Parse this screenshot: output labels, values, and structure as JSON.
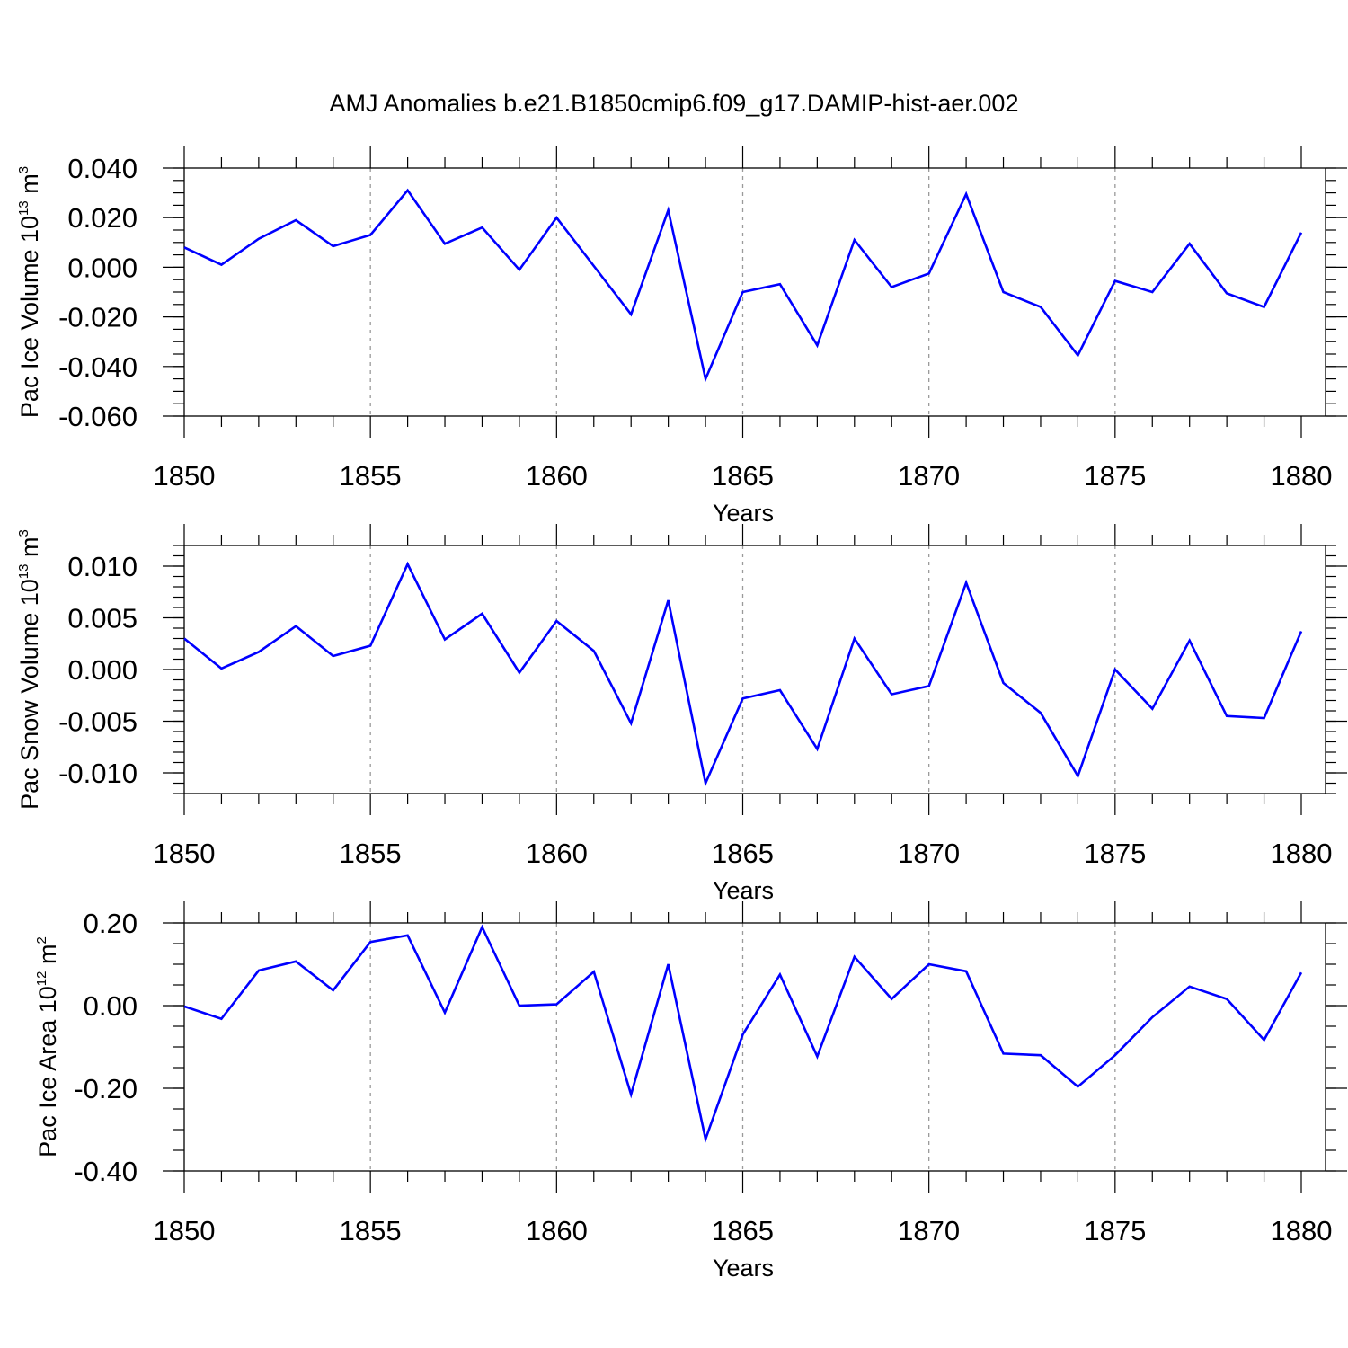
{
  "figure": {
    "title": "AMJ Anomalies b.e21.B1850cmip6.f09_g17.DAMIP-hist-aer.002"
  },
  "chart_data": [
    {
      "type": "line",
      "xlabel": "Years",
      "ylabel": {
        "text": "Pac Ice Volume 10",
        "sup": "13",
        "unit_tail": " m",
        "unit_sup": "3"
      },
      "xlim": [
        1850,
        1880
      ],
      "ylim": [
        -0.06,
        0.04
      ],
      "xticks": [
        1850,
        1855,
        1860,
        1865,
        1870,
        1875,
        1880
      ],
      "xtick_labels": [
        "1850",
        "1855",
        "1860",
        "1865",
        "1870",
        "1875",
        "1880"
      ],
      "yticks": [
        -0.06,
        -0.04,
        -0.02,
        0.0,
        0.02,
        0.04
      ],
      "ytick_labels": [
        "-0.060",
        "-0.040",
        "-0.020",
        "0.000",
        "0.020",
        "0.040"
      ],
      "y_minor_step": 0.005,
      "grid": "vertical dashed at major x ticks",
      "color": "#0000ff",
      "x": [
        1850,
        1851,
        1852,
        1853,
        1854,
        1855,
        1856,
        1857,
        1858,
        1859,
        1860,
        1861,
        1862,
        1863,
        1864,
        1865,
        1866,
        1867,
        1868,
        1869,
        1870,
        1871,
        1872,
        1873,
        1874,
        1875,
        1876,
        1877,
        1878,
        1879,
        1880
      ],
      "values": [
        0.008,
        0.001,
        0.0115,
        0.019,
        0.0085,
        0.013,
        0.031,
        0.0095,
        0.016,
        -0.001,
        0.02,
        0.0005,
        -0.019,
        0.023,
        -0.045,
        -0.01,
        -0.0068,
        -0.0315,
        0.011,
        -0.008,
        -0.0025,
        0.0295,
        -0.01,
        -0.016,
        -0.0355,
        -0.0055,
        -0.01,
        0.0095,
        -0.0105,
        -0.016,
        0.014
      ]
    },
    {
      "type": "line",
      "xlabel": "Years",
      "ylabel": {
        "text": "Pac Snow Volume 10",
        "sup": "13",
        "unit_tail": " m",
        "unit_sup": "3"
      },
      "xlim": [
        1850,
        1880
      ],
      "ylim": [
        -0.012,
        0.012
      ],
      "xticks": [
        1850,
        1855,
        1860,
        1865,
        1870,
        1875,
        1880
      ],
      "xtick_labels": [
        "1850",
        "1855",
        "1860",
        "1865",
        "1870",
        "1875",
        "1880"
      ],
      "yticks": [
        -0.01,
        -0.005,
        0.0,
        0.005,
        0.01
      ],
      "ytick_labels": [
        "-0.010",
        "-0.005",
        "0.000",
        "0.005",
        "0.010"
      ],
      "y_minor_step": 0.001,
      "grid": "vertical dashed at major x ticks",
      "color": "#0000ff",
      "x": [
        1850,
        1851,
        1852,
        1853,
        1854,
        1855,
        1856,
        1857,
        1858,
        1859,
        1860,
        1861,
        1862,
        1863,
        1864,
        1865,
        1866,
        1867,
        1868,
        1869,
        1870,
        1871,
        1872,
        1873,
        1874,
        1875,
        1876,
        1877,
        1878,
        1879,
        1880
      ],
      "values": [
        0.003,
        0.0001,
        0.0017,
        0.0042,
        0.0013,
        0.0023,
        0.0102,
        0.0029,
        0.0054,
        -0.0003,
        0.0047,
        0.0018,
        -0.0052,
        0.0067,
        -0.011,
        -0.0028,
        -0.002,
        -0.0077,
        0.003,
        -0.0024,
        -0.0016,
        0.0084,
        -0.0013,
        -0.0042,
        -0.0103,
        0.0,
        -0.0038,
        0.0028,
        -0.0045,
        -0.0047,
        0.0037
      ]
    },
    {
      "type": "line",
      "xlabel": "Years",
      "ylabel": {
        "text": "Pac Ice Area 10",
        "sup": "12",
        "unit_tail": " m",
        "unit_sup": "2"
      },
      "xlim": [
        1850,
        1880
      ],
      "ylim": [
        -0.4,
        0.2
      ],
      "xticks": [
        1850,
        1855,
        1860,
        1865,
        1870,
        1875,
        1880
      ],
      "xtick_labels": [
        "1850",
        "1855",
        "1860",
        "1865",
        "1870",
        "1875",
        "1880"
      ],
      "yticks": [
        -0.4,
        -0.2,
        0.0,
        0.2
      ],
      "ytick_labels": [
        "-0.40",
        "-0.20",
        "0.00",
        "0.20"
      ],
      "y_minor_step": 0.05,
      "grid": "vertical dashed at major x ticks",
      "color": "#0000ff",
      "x": [
        1850,
        1851,
        1852,
        1853,
        1854,
        1855,
        1856,
        1857,
        1858,
        1859,
        1860,
        1861,
        1862,
        1863,
        1864,
        1865,
        1866,
        1867,
        1868,
        1869,
        1870,
        1871,
        1872,
        1873,
        1874,
        1875,
        1876,
        1877,
        1878,
        1879,
        1880
      ],
      "values": [
        -0.002,
        -0.032,
        0.085,
        0.107,
        0.037,
        0.154,
        0.17,
        -0.017,
        0.19,
        0.0,
        0.003,
        0.082,
        -0.215,
        0.1,
        -0.323,
        -0.07,
        0.075,
        -0.123,
        0.118,
        0.016,
        0.1,
        0.083,
        -0.116,
        -0.12,
        -0.196,
        -0.12,
        -0.028,
        0.046,
        0.016,
        -0.083,
        0.08
      ]
    }
  ]
}
